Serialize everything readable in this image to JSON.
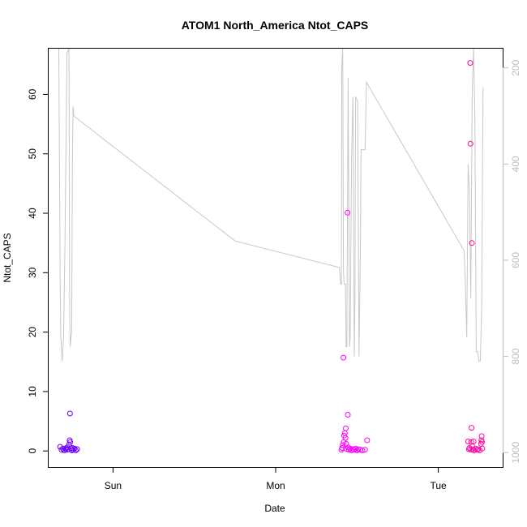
{
  "chart_data": {
    "type": "scatter",
    "title": "ATOM1 North_America Ntot_CAPS",
    "xlabel": "Date",
    "ylabel": "Ntot_CAPS",
    "x_ticks": [
      {
        "value": 24,
        "label": "Sun"
      },
      {
        "value": 48,
        "label": "Mon"
      },
      {
        "value": 72,
        "label": "Tue"
      }
    ],
    "xlim": [
      14.5,
      81.5
    ],
    "ylim": [
      -2.7,
      67.7
    ],
    "y_ticks": [
      0,
      10,
      20,
      30,
      40,
      50,
      60
    ],
    "y2_label_color": "#bdbdbd",
    "y2_lim": [
      1030,
      160
    ],
    "y2_ticks": [
      200,
      400,
      600,
      800,
      1000
    ],
    "grid": false,
    "legend": "none",
    "points": [
      {
        "x": 16.2,
        "y": 0.7,
        "color": "#6a00ff"
      },
      {
        "x": 16.4,
        "y": 0.2,
        "color": "#6a00ff"
      },
      {
        "x": 16.6,
        "y": 0.4,
        "color": "#6a00ff"
      },
      {
        "x": 16.8,
        "y": 0.1,
        "color": "#6a00ff"
      },
      {
        "x": 17.0,
        "y": 0.3,
        "color": "#6a00ff"
      },
      {
        "x": 17.1,
        "y": 0.5,
        "color": "#6a00ff"
      },
      {
        "x": 17.2,
        "y": 0.2,
        "color": "#6a00ff"
      },
      {
        "x": 17.3,
        "y": 0.6,
        "color": "#6c00ff"
      },
      {
        "x": 17.4,
        "y": 0.3,
        "color": "#6c00ff"
      },
      {
        "x": 17.5,
        "y": 1.1,
        "color": "#7000ff"
      },
      {
        "x": 17.6,
        "y": 1.8,
        "color": "#7400ff"
      },
      {
        "x": 17.65,
        "y": 6.3,
        "color": "#7a00ff"
      },
      {
        "x": 17.7,
        "y": 1.5,
        "color": "#7400ff"
      },
      {
        "x": 17.8,
        "y": 0.4,
        "color": "#6c00ff"
      },
      {
        "x": 17.9,
        "y": 0.1,
        "color": "#6a00ff"
      },
      {
        "x": 18.0,
        "y": 0.5,
        "color": "#6a00ff"
      },
      {
        "x": 18.1,
        "y": 0.2,
        "color": "#6a00ff"
      },
      {
        "x": 18.3,
        "y": 0.4,
        "color": "#6a00ff"
      },
      {
        "x": 18.5,
        "y": 0.1,
        "color": "#6a00ff"
      },
      {
        "x": 18.7,
        "y": 0.3,
        "color": "#6a00ff"
      },
      {
        "x": 57.7,
        "y": 0.2,
        "color": "#ff00ff"
      },
      {
        "x": 57.8,
        "y": 0.5,
        "color": "#ff00ff"
      },
      {
        "x": 57.9,
        "y": 1.0,
        "color": "#ff00ff"
      },
      {
        "x": 58.0,
        "y": 15.7,
        "color": "#ff00ff"
      },
      {
        "x": 58.05,
        "y": 1.5,
        "color": "#ff00ff"
      },
      {
        "x": 58.1,
        "y": 2.6,
        "color": "#ff00ff"
      },
      {
        "x": 58.2,
        "y": 3.0,
        "color": "#ff00ff"
      },
      {
        "x": 58.3,
        "y": 2.2,
        "color": "#ff00ff"
      },
      {
        "x": 58.35,
        "y": 3.8,
        "color": "#ff00ff"
      },
      {
        "x": 58.4,
        "y": 1.2,
        "color": "#ff00ff"
      },
      {
        "x": 58.5,
        "y": 0.3,
        "color": "#ff00ff"
      },
      {
        "x": 58.6,
        "y": 40.1,
        "color": "#ff00ff"
      },
      {
        "x": 58.65,
        "y": 6.1,
        "color": "#ff00ff"
      },
      {
        "x": 58.7,
        "y": 0.6,
        "color": "#ff00ff"
      },
      {
        "x": 58.8,
        "y": 0.2,
        "color": "#ff00ff"
      },
      {
        "x": 59.0,
        "y": 0.4,
        "color": "#ff00ff"
      },
      {
        "x": 59.2,
        "y": 0.1,
        "color": "#ff00ff"
      },
      {
        "x": 59.4,
        "y": 0.3,
        "color": "#ff00ff"
      },
      {
        "x": 59.6,
        "y": 0.2,
        "color": "#ff00ff"
      },
      {
        "x": 59.8,
        "y": 0.4,
        "color": "#ff00ff"
      },
      {
        "x": 60.0,
        "y": 0.1,
        "color": "#ff00ff"
      },
      {
        "x": 60.2,
        "y": 0.3,
        "color": "#ff00ff"
      },
      {
        "x": 60.5,
        "y": 0.2,
        "color": "#ff00ff"
      },
      {
        "x": 60.8,
        "y": 0.1,
        "color": "#ff00ff"
      },
      {
        "x": 61.2,
        "y": 0.2,
        "color": "#ff00ff"
      },
      {
        "x": 61.5,
        "y": 1.8,
        "color": "#ff00ff"
      },
      {
        "x": 76.4,
        "y": 1.6,
        "color": "#ff0aa0"
      },
      {
        "x": 76.5,
        "y": 0.3,
        "color": "#ff0aa0"
      },
      {
        "x": 76.6,
        "y": 0.5,
        "color": "#ff0aa0"
      },
      {
        "x": 76.7,
        "y": 65.3,
        "color": "#ff0a8c"
      },
      {
        "x": 76.75,
        "y": 51.7,
        "color": "#ff0a8c"
      },
      {
        "x": 76.8,
        "y": 0.2,
        "color": "#ff0aa0"
      },
      {
        "x": 76.85,
        "y": 1.5,
        "color": "#ff0aa0"
      },
      {
        "x": 76.9,
        "y": 3.9,
        "color": "#ff0aa0"
      },
      {
        "x": 76.95,
        "y": 35.0,
        "color": "#ff0a8c"
      },
      {
        "x": 77.0,
        "y": 0.8,
        "color": "#ff0aa0"
      },
      {
        "x": 77.1,
        "y": 0.3,
        "color": "#ff0aa0"
      },
      {
        "x": 77.2,
        "y": 1.6,
        "color": "#ff0aa0"
      },
      {
        "x": 77.3,
        "y": 0.1,
        "color": "#ff0aa0"
      },
      {
        "x": 77.5,
        "y": 0.4,
        "color": "#ff0aa0"
      },
      {
        "x": 77.7,
        "y": 0.2,
        "color": "#ff0aa0"
      },
      {
        "x": 77.9,
        "y": 0.3,
        "color": "#ff0aa0"
      },
      {
        "x": 78.1,
        "y": 0.1,
        "color": "#ff0aa0"
      },
      {
        "x": 78.3,
        "y": 1.2,
        "color": "#ff0aa0"
      },
      {
        "x": 78.35,
        "y": 1.8,
        "color": "#ff0aa0"
      },
      {
        "x": 78.4,
        "y": 2.5,
        "color": "#ff0aa0"
      },
      {
        "x": 78.45,
        "y": 1.5,
        "color": "#ff0aa0"
      },
      {
        "x": 78.5,
        "y": 0.4,
        "color": "#ff0aa0"
      }
    ],
    "pressure_line_color": "#c8c8c8",
    "pressure_line": [
      [
        16.0,
        160
      ],
      [
        16.2,
        640
      ],
      [
        16.3,
        760
      ],
      [
        16.5,
        810
      ],
      [
        16.7,
        760
      ],
      [
        16.9,
        570
      ],
      [
        17.2,
        170
      ],
      [
        17.5,
        160
      ],
      [
        17.6,
        700
      ],
      [
        17.7,
        780
      ],
      [
        17.8,
        760
      ],
      [
        17.9,
        750
      ],
      [
        18.0,
        400
      ],
      [
        18.1,
        280
      ],
      [
        18.2,
        300
      ],
      [
        42.0,
        560
      ],
      [
        57.4,
        615
      ],
      [
        57.6,
        650
      ],
      [
        57.7,
        650
      ],
      [
        57.75,
        200
      ],
      [
        57.9,
        160
      ],
      [
        58.0,
        620
      ],
      [
        58.1,
        650
      ],
      [
        58.3,
        650
      ],
      [
        58.4,
        780
      ],
      [
        58.5,
        780
      ],
      [
        58.7,
        220
      ],
      [
        58.9,
        780
      ],
      [
        59.0,
        760
      ],
      [
        59.2,
        390
      ],
      [
        59.4,
        260
      ],
      [
        59.6,
        800
      ],
      [
        59.7,
        680
      ],
      [
        59.8,
        260
      ],
      [
        60.1,
        270
      ],
      [
        60.3,
        800
      ],
      [
        60.5,
        580
      ],
      [
        60.6,
        370
      ],
      [
        61.2,
        370
      ],
      [
        61.4,
        230
      ],
      [
        75.8,
        580
      ],
      [
        76.0,
        650
      ],
      [
        76.2,
        760
      ],
      [
        76.4,
        400
      ],
      [
        76.5,
        430
      ],
      [
        76.6,
        450
      ],
      [
        76.8,
        680
      ],
      [
        77.0,
        250
      ],
      [
        77.2,
        160
      ],
      [
        77.4,
        300
      ],
      [
        77.6,
        790
      ],
      [
        77.8,
        790
      ],
      [
        78.0,
        810
      ],
      [
        78.2,
        810
      ],
      [
        78.4,
        700
      ],
      [
        78.6,
        240
      ]
    ]
  }
}
